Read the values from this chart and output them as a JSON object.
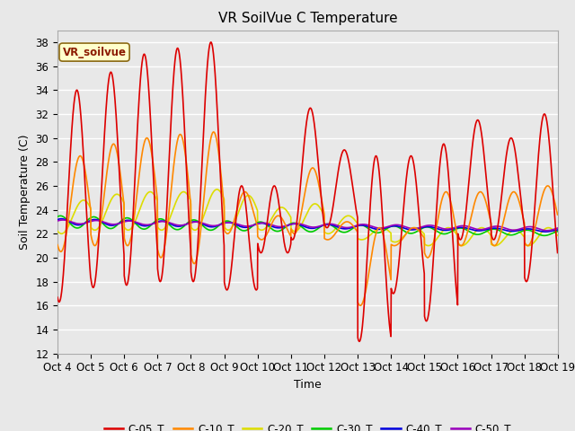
{
  "title": "VR SoilVue C Temperature",
  "xlabel": "Time",
  "ylabel": "Soil Temperature (C)",
  "ylim": [
    12,
    39
  ],
  "yticks": [
    12,
    14,
    16,
    18,
    20,
    22,
    24,
    26,
    28,
    30,
    32,
    34,
    36,
    38
  ],
  "xtick_labels": [
    "Oct 4",
    "Oct 5",
    "Oct 6",
    "Oct 7",
    "Oct 8",
    "Oct 9",
    "Oct 10",
    "Oct 11",
    "Oct 12",
    "Oct 13",
    "Oct 14",
    "Oct 15",
    "Oct 16",
    "Oct 17",
    "Oct 18",
    "Oct 19"
  ],
  "series": {
    "C-05_T": {
      "color": "#dd0000",
      "lw": 1.2
    },
    "C-10_T": {
      "color": "#ff8800",
      "lw": 1.2
    },
    "C-20_T": {
      "color": "#dddd00",
      "lw": 1.2
    },
    "C-30_T": {
      "color": "#00cc00",
      "lw": 1.2
    },
    "C-40_T": {
      "color": "#0000dd",
      "lw": 1.2
    },
    "C-50_T": {
      "color": "#9900bb",
      "lw": 1.2
    }
  },
  "legend_text": "VR_soilvue",
  "background_color": "#e8e8e8",
  "grid_color": "#ffffff",
  "title_fontsize": 11,
  "axis_fontsize": 9,
  "tick_fontsize": 8.5
}
